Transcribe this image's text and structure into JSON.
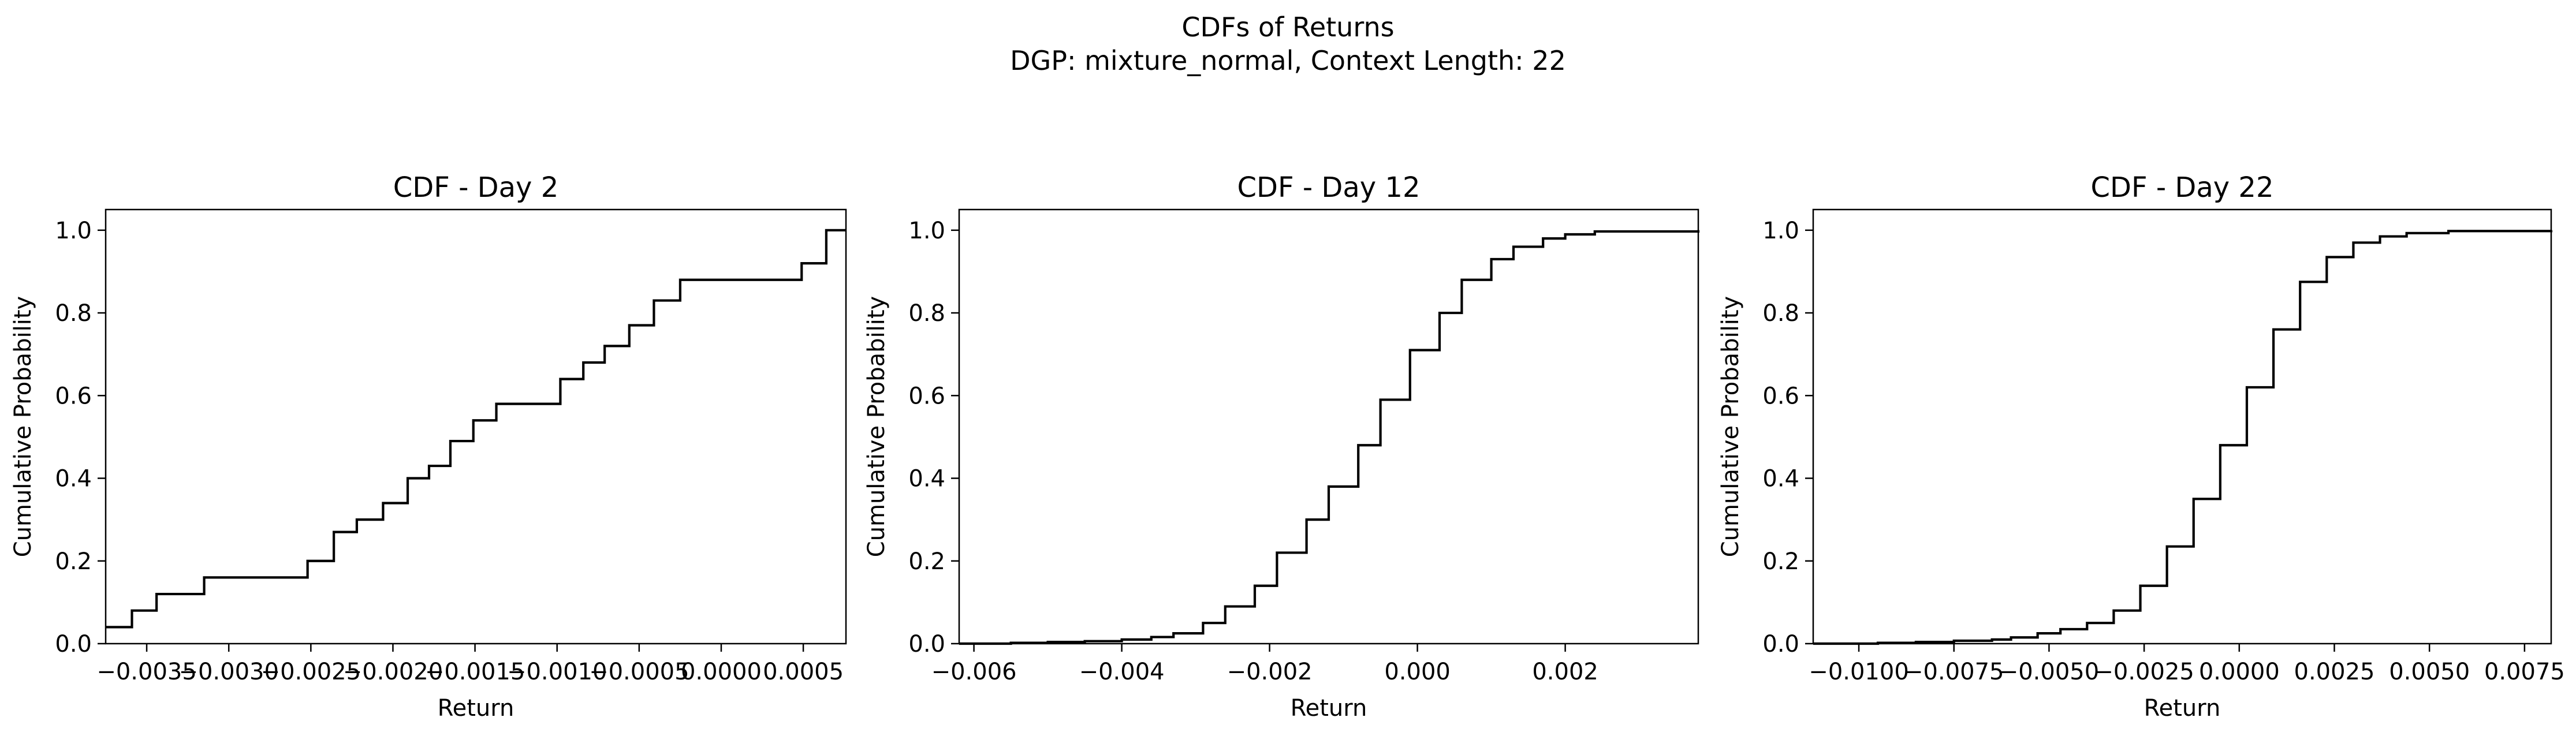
{
  "figure": {
    "title": "CDFs of Returns",
    "subtitle": "DGP: mixture_normal, Context Length: 22"
  },
  "chart_data": [
    {
      "type": "line",
      "step": true,
      "title": "CDF - Day 2",
      "xlabel": "Return",
      "ylabel": "Cumulative Probability",
      "xlim": [
        -0.00375,
        0.00076
      ],
      "ylim": [
        0.0,
        1.05
      ],
      "xticks": [
        -0.0035,
        -0.003,
        -0.0025,
        -0.002,
        -0.0015,
        -0.001,
        -0.0005,
        0.0,
        0.0005
      ],
      "xtick_labels": [
        "−0.0035",
        "−0.0030",
        "−0.0025",
        "−0.0020",
        "−0.0015",
        "−0.0010",
        "−0.0005",
        "0.0000",
        "0.0005"
      ],
      "yticks": [
        0.0,
        0.2,
        0.4,
        0.6,
        0.8,
        1.0
      ],
      "ytick_labels": [
        "0.0",
        "0.2",
        "0.4",
        "0.6",
        "0.8",
        "1.0"
      ],
      "grid": false,
      "series": [
        {
          "color": "#000000",
          "x": [
            -0.00375,
            -0.00359,
            -0.00344,
            -0.00315,
            -0.00252,
            -0.00236,
            -0.00222,
            -0.00206,
            -0.00191,
            -0.00178,
            -0.00165,
            -0.00151,
            -0.00137,
            -0.00098,
            -0.00084,
            -0.00071,
            -0.00056,
            -0.00041,
            -0.00025,
            0.00049,
            0.00064,
            0.00076
          ],
          "y": [
            0.04,
            0.08,
            0.12,
            0.16,
            0.2,
            0.27,
            0.3,
            0.34,
            0.4,
            0.43,
            0.49,
            0.54,
            0.58,
            0.64,
            0.68,
            0.72,
            0.77,
            0.83,
            0.88,
            0.92,
            1.0,
            1.0
          ]
        }
      ]
    },
    {
      "type": "line",
      "step": true,
      "title": "CDF - Day 12",
      "xlabel": "Return",
      "ylabel": "Cumulative Probability",
      "xlim": [
        -0.0062,
        0.0038
      ],
      "ylim": [
        0.0,
        1.05
      ],
      "xticks": [
        -0.006,
        -0.004,
        -0.002,
        0.0,
        0.002
      ],
      "xtick_labels": [
        "−0.006",
        "−0.004",
        "−0.002",
        "0.000",
        "0.002"
      ],
      "yticks": [
        0.0,
        0.2,
        0.4,
        0.6,
        0.8,
        1.0
      ],
      "ytick_labels": [
        "0.0",
        "0.2",
        "0.4",
        "0.6",
        "0.8",
        "1.0"
      ],
      "grid": false,
      "series": [
        {
          "color": "#000000",
          "x": [
            -0.0062,
            -0.0055,
            -0.005,
            -0.0045,
            -0.004,
            -0.0036,
            -0.0033,
            -0.0029,
            -0.0026,
            -0.0022,
            -0.0019,
            -0.0015,
            -0.0012,
            -0.0008,
            -0.0005,
            -0.0001,
            0.0003,
            0.0006,
            0.001,
            0.0013,
            0.0017,
            0.002,
            0.0024,
            0.0038
          ],
          "y": [
            0.0,
            0.002,
            0.004,
            0.006,
            0.01,
            0.016,
            0.025,
            0.05,
            0.09,
            0.14,
            0.22,
            0.3,
            0.38,
            0.48,
            0.59,
            0.71,
            0.8,
            0.88,
            0.93,
            0.96,
            0.98,
            0.99,
            0.997,
            1.0
          ]
        }
      ]
    },
    {
      "type": "line",
      "step": true,
      "title": "CDF - Day 22",
      "xlabel": "Return",
      "ylabel": "Cumulative Probability",
      "xlim": [
        -0.0112,
        0.0082
      ],
      "ylim": [
        0.0,
        1.05
      ],
      "xticks": [
        -0.01,
        -0.0075,
        -0.005,
        -0.0025,
        0.0,
        0.0025,
        0.005,
        0.0075
      ],
      "xtick_labels": [
        "−0.0100",
        "−0.0075",
        "−0.0050",
        "−0.0025",
        "0.0000",
        "0.0025",
        "0.0050",
        "0.0075"
      ],
      "yticks": [
        0.0,
        0.2,
        0.4,
        0.6,
        0.8,
        1.0
      ],
      "ytick_labels": [
        "0.0",
        "0.2",
        "0.4",
        "0.6",
        "0.8",
        "1.0"
      ],
      "grid": false,
      "series": [
        {
          "color": "#000000",
          "x": [
            -0.0112,
            -0.0095,
            -0.0085,
            -0.0075,
            -0.0065,
            -0.006,
            -0.0053,
            -0.0047,
            -0.004,
            -0.0033,
            -0.0026,
            -0.0019,
            -0.0012,
            -0.0005,
            0.0002,
            0.0009,
            0.0016,
            0.0023,
            0.003,
            0.0037,
            0.0044,
            0.0055,
            0.0082
          ],
          "y": [
            0.0,
            0.002,
            0.004,
            0.007,
            0.01,
            0.015,
            0.025,
            0.035,
            0.05,
            0.08,
            0.14,
            0.235,
            0.35,
            0.48,
            0.62,
            0.76,
            0.875,
            0.935,
            0.97,
            0.985,
            0.993,
            0.998,
            1.0
          ]
        }
      ]
    }
  ]
}
